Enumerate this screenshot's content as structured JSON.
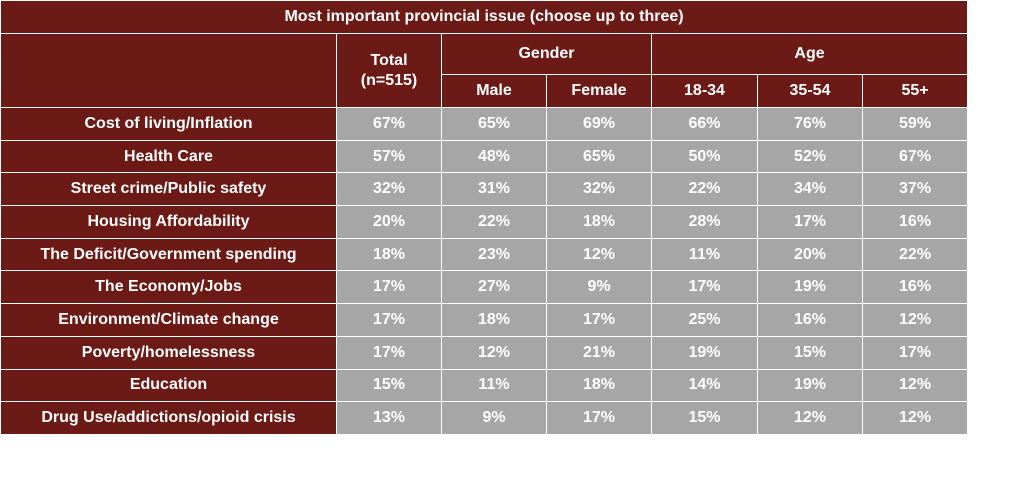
{
  "chart_data": {
    "type": "table",
    "title": "Most important provincial issue (choose up to three)",
    "header": {
      "total_label": "Total",
      "total_n": "(n=515)",
      "gender_label": "Gender",
      "age_label": "Age",
      "columns": [
        "Male",
        "Female",
        "18-34",
        "35-54",
        "55+"
      ]
    },
    "rows": [
      {
        "label": "Cost of living/Inflation",
        "values": [
          "67%",
          "65%",
          "69%",
          "66%",
          "76%",
          "59%"
        ]
      },
      {
        "label": "Health Care",
        "values": [
          "57%",
          "48%",
          "65%",
          "50%",
          "52%",
          "67%"
        ]
      },
      {
        "label": "Street crime/Public safety",
        "values": [
          "32%",
          "31%",
          "32%",
          "22%",
          "34%",
          "37%"
        ]
      },
      {
        "label": "Housing Affordability",
        "values": [
          "20%",
          "22%",
          "18%",
          "28%",
          "17%",
          "16%"
        ]
      },
      {
        "label": "The Deficit/Government spending",
        "values": [
          "18%",
          "23%",
          "12%",
          "11%",
          "20%",
          "22%"
        ]
      },
      {
        "label": "The Economy/Jobs",
        "values": [
          "17%",
          "27%",
          "9%",
          "17%",
          "19%",
          "16%"
        ]
      },
      {
        "label": "Environment/Climate change",
        "values": [
          "17%",
          "18%",
          "17%",
          "25%",
          "16%",
          "12%"
        ]
      },
      {
        "label": "Poverty/homelessness",
        "values": [
          "17%",
          "12%",
          "21%",
          "19%",
          "15%",
          "17%"
        ]
      },
      {
        "label": "Education",
        "values": [
          "15%",
          "11%",
          "18%",
          "14%",
          "19%",
          "12%"
        ]
      },
      {
        "label": "Drug Use/addictions/opioid crisis",
        "values": [
          "13%",
          "9%",
          "17%",
          "15%",
          "12%",
          "12%"
        ]
      }
    ]
  },
  "colors": {
    "header_bg": "#6b1a16",
    "value_bg": "#a6a6a6",
    "text": "#ffffff"
  }
}
